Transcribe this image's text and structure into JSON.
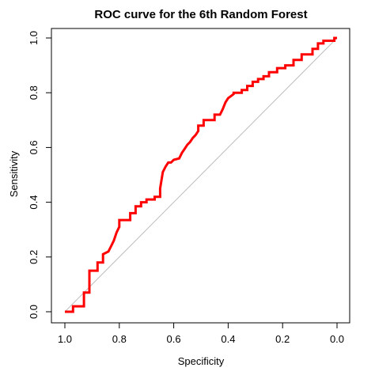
{
  "chart_data": {
    "type": "line",
    "title": "ROC curve for the 6th Random Forest",
    "xlabel": "Specificity",
    "ylabel": "Sensitivity",
    "x_reversed": true,
    "xlim": [
      1.0,
      0.0
    ],
    "ylim": [
      0.0,
      1.0
    ],
    "x_ticks": [
      1.0,
      0.8,
      0.6,
      0.4,
      0.2,
      0.0
    ],
    "x_tick_labels": [
      "1.0",
      "0.8",
      "0.6",
      "0.4",
      "0.2",
      "0.0"
    ],
    "y_ticks": [
      0.0,
      0.2,
      0.4,
      0.6,
      0.8,
      1.0
    ],
    "y_tick_labels": [
      "0.0",
      "0.2",
      "0.4",
      "0.6",
      "0.8",
      "1.0"
    ],
    "grid": false,
    "legend": "none",
    "reference_line": {
      "description": "diagonal",
      "x": [
        1.0,
        0.0
      ],
      "y": [
        0.0,
        1.0
      ],
      "color": "#bebebe"
    },
    "series": [
      {
        "color": "#ff0000",
        "x": [
          1.0,
          0.97,
          0.97,
          0.93,
          0.93,
          0.91,
          0.91,
          0.88,
          0.88,
          0.86,
          0.86,
          0.84,
          0.83,
          0.82,
          0.81,
          0.8,
          0.8,
          0.76,
          0.76,
          0.74,
          0.74,
          0.72,
          0.72,
          0.7,
          0.7,
          0.67,
          0.67,
          0.65,
          0.65,
          0.645,
          0.64,
          0.63,
          0.62,
          0.61,
          0.6,
          0.58,
          0.57,
          0.56,
          0.55,
          0.54,
          0.53,
          0.52,
          0.51,
          0.51,
          0.49,
          0.49,
          0.45,
          0.45,
          0.43,
          0.42,
          0.41,
          0.4,
          0.38,
          0.38,
          0.35,
          0.35,
          0.33,
          0.33,
          0.31,
          0.31,
          0.29,
          0.29,
          0.27,
          0.27,
          0.25,
          0.25,
          0.22,
          0.22,
          0.19,
          0.19,
          0.16,
          0.16,
          0.13,
          0.13,
          0.09,
          0.09,
          0.07,
          0.07,
          0.05,
          0.05,
          0.01,
          0.01,
          0.0
        ],
        "y": [
          0.0,
          0.0,
          0.02,
          0.02,
          0.07,
          0.07,
          0.15,
          0.15,
          0.18,
          0.18,
          0.21,
          0.22,
          0.24,
          0.26,
          0.29,
          0.31,
          0.335,
          0.335,
          0.36,
          0.36,
          0.385,
          0.385,
          0.4,
          0.4,
          0.41,
          0.41,
          0.42,
          0.42,
          0.45,
          0.48,
          0.51,
          0.53,
          0.545,
          0.545,
          0.555,
          0.56,
          0.58,
          0.595,
          0.61,
          0.62,
          0.635,
          0.645,
          0.66,
          0.68,
          0.68,
          0.7,
          0.7,
          0.72,
          0.72,
          0.74,
          0.765,
          0.78,
          0.795,
          0.8,
          0.8,
          0.81,
          0.81,
          0.825,
          0.825,
          0.84,
          0.84,
          0.85,
          0.85,
          0.86,
          0.86,
          0.875,
          0.875,
          0.89,
          0.89,
          0.9,
          0.9,
          0.92,
          0.92,
          0.94,
          0.94,
          0.96,
          0.96,
          0.98,
          0.98,
          0.99,
          0.99,
          1.0,
          1.0
        ]
      }
    ]
  }
}
